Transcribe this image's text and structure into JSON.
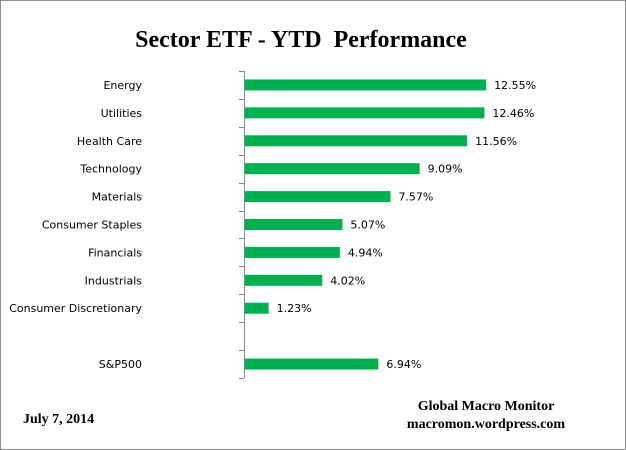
{
  "chart_data": {
    "type": "bar",
    "orientation": "horizontal",
    "title": "Sector ETF - YTD  Performance",
    "categories": [
      "Energy",
      "Utilities",
      "Health Care",
      "Technology",
      "Materials",
      "Consumer Staples",
      "Financials",
      "Industrials",
      "Consumer Discretionary",
      "",
      "S&P500"
    ],
    "values": [
      12.55,
      12.46,
      11.56,
      9.09,
      7.57,
      5.07,
      4.94,
      4.02,
      1.23,
      null,
      6.94
    ],
    "data_labels": [
      "12.55%",
      "12.46%",
      "11.56%",
      "9.09%",
      "7.57%",
      "5.07%",
      "4.94%",
      "4.02%",
      "1.23%",
      "",
      "6.94%"
    ],
    "xlim": [
      0,
      14
    ],
    "grid": false,
    "legend": "none",
    "bar_color": "#00b050"
  },
  "footer": {
    "date": "July 7, 2014",
    "source_line1": "Global Macro Monitor",
    "source_line2": "macromon.wordpress.com"
  }
}
